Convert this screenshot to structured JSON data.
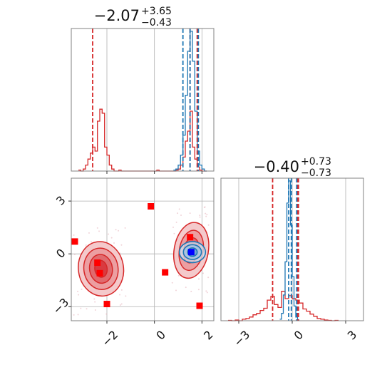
{
  "colors": {
    "red": "#d62728",
    "blue": "#1f77b4",
    "marker": "#ff0000",
    "truth": "#0000ff",
    "grid": "#b0b0b0",
    "spine": "#808080"
  },
  "chart_data": [
    {
      "type": "histogram",
      "title": {
        "median": "−2.07",
        "plus": "+3.65",
        "minus": "−0.43"
      },
      "xlim": [
        -3.5,
        2.5
      ],
      "grid": true,
      "series": [
        {
          "name": "",
          "color": "#d62728",
          "x_edges": [
            -3.2,
            -3.1,
            -3.0,
            -2.9,
            -2.8,
            -2.7,
            -2.6,
            -2.5,
            -2.4,
            -2.3,
            -2.2,
            -2.1,
            -2.0,
            -1.9,
            -1.8,
            -1.7,
            -1.6,
            -1.5,
            -1.4,
            -1.3,
            -1.2,
            -1.1,
            -1.0,
            -0.9,
            -0.8,
            -0.7,
            -0.6,
            -0.5,
            -0.4,
            -0.3,
            -0.2,
            -0.1,
            0.0,
            0.1,
            0.2,
            0.3,
            0.4,
            0.5,
            0.6,
            0.7,
            0.8,
            0.9,
            1.0,
            1.1,
            1.2,
            1.3,
            1.4,
            1.5,
            1.6,
            1.7,
            1.8,
            1.9,
            2.0,
            2.1,
            2.2
          ],
          "counts": [
            0.5,
            0,
            1,
            3,
            6,
            9,
            12,
            10,
            25,
            31,
            29,
            12,
            8,
            3,
            1,
            0,
            0,
            0.5,
            0,
            0,
            0,
            0,
            0,
            0,
            0,
            0,
            0,
            0,
            0,
            0,
            0,
            0,
            0,
            0.5,
            0,
            0,
            0,
            0,
            0,
            0,
            0,
            0.5,
            1,
            3,
            7,
            15,
            20,
            30,
            12,
            6,
            2,
            0.5,
            0,
            0
          ]
        },
        {
          "name": "",
          "color": "#1f77b4",
          "x_edges": [
            0.8,
            0.9,
            1.0,
            1.1,
            1.2,
            1.3,
            1.4,
            1.5,
            1.6,
            1.7,
            1.8,
            1.9,
            2.0,
            2.1,
            2.2
          ],
          "counts": [
            0.5,
            1,
            3,
            8,
            18,
            38,
            60,
            70,
            55,
            30,
            10,
            3,
            1,
            0
          ]
        }
      ],
      "vlines": [
        {
          "x": -2.6,
          "color": "#d62728"
        },
        {
          "x": 1.5,
          "color": "#d62728"
        },
        {
          "x": 1.8,
          "color": "#d62728"
        },
        {
          "x": 1.2,
          "color": "#1f77b4"
        },
        {
          "x": 1.5,
          "color": "#1f77b4"
        },
        {
          "x": 1.85,
          "color": "#1f77b4"
        }
      ]
    },
    {
      "type": "contour-scatter",
      "xlim": [
        -3.5,
        2.5
      ],
      "ylim": [
        -3.8,
        4.3
      ],
      "x_ticks": [
        -2,
        0,
        2
      ],
      "x_tick_labels": [
        "−2",
        "0",
        "2"
      ],
      "y_ticks": [
        -3,
        0,
        3
      ],
      "y_tick_labels": [
        "−3",
        "0",
        "3"
      ],
      "grid": true,
      "markers": [
        {
          "x": -3.35,
          "y": 0.7
        },
        {
          "x": -2.4,
          "y": -0.5
        },
        {
          "x": -2.3,
          "y": -1.1
        },
        {
          "x": -2.0,
          "y": -2.85
        },
        {
          "x": -0.15,
          "y": 2.7
        },
        {
          "x": 0.45,
          "y": -1.05
        },
        {
          "x": 1.5,
          "y": 0.95
        },
        {
          "x": 1.9,
          "y": -2.95
        }
      ],
      "truth": {
        "x": 1.55,
        "y": 0.1
      }
    },
    {
      "type": "histogram",
      "title": {
        "median": "−0.40",
        "plus": "+0.73",
        "minus": "−0.73"
      },
      "xlim": [
        -4.0,
        4.0
      ],
      "x_ticks": [
        -3,
        0,
        3
      ],
      "x_tick_labels": [
        "−3",
        "0",
        "3"
      ],
      "grid": true,
      "series": [
        {
          "name": "",
          "color": "#d62728",
          "x_edges": [
            -3.6,
            -3.4,
            -3.2,
            -3.0,
            -2.8,
            -2.6,
            -2.4,
            -2.2,
            -2.0,
            -1.8,
            -1.6,
            -1.4,
            -1.2,
            -1.0,
            -0.8,
            -0.6,
            -0.4,
            -0.2,
            0.0,
            0.2,
            0.4,
            0.6,
            0.8,
            1.0,
            1.2,
            1.4,
            1.6,
            1.8,
            2.0,
            2.2,
            2.4,
            2.6
          ],
          "counts": [
            0.5,
            0,
            1,
            0,
            2,
            3,
            5,
            8,
            10,
            14,
            17,
            28,
            33,
            22,
            18,
            40,
            30,
            34,
            30,
            28,
            24,
            16,
            13,
            9,
            6,
            3,
            2,
            1,
            0.5,
            0,
            0.5
          ]
        },
        {
          "name": "",
          "color": "#1f77b4",
          "x_edges": [
            -0.7,
            -0.6,
            -0.5,
            -0.4,
            -0.3,
            -0.2,
            -0.1,
            0.0,
            0.1,
            0.2,
            0.3,
            0.4
          ],
          "counts": [
            2,
            10,
            35,
            80,
            160,
            190,
            130,
            60,
            20,
            5,
            1
          ]
        }
      ],
      "vlines": [
        {
          "x": -1.1,
          "color": "#d62728"
        },
        {
          "x": 0.3,
          "color": "#d62728"
        },
        {
          "x": 0.35,
          "color": "#d62728"
        },
        {
          "x": -0.2,
          "color": "#1f77b4"
        },
        {
          "x": -0.05,
          "color": "#1f77b4"
        },
        {
          "x": 0.25,
          "color": "#1f77b4"
        }
      ]
    }
  ]
}
